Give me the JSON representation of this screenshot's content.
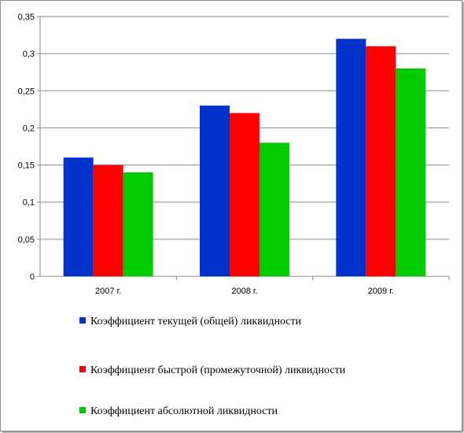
{
  "chart_data": {
    "type": "bar",
    "categories": [
      "2007 г.",
      "2008 г.",
      "2009 г."
    ],
    "series": [
      {
        "name": "Коэффициент текущей (общей) ликвидности",
        "values": [
          0.16,
          0.23,
          0.32
        ],
        "color": "#0033cc"
      },
      {
        "name": "Коэффициент быстрой (промежуточной) ликвидности",
        "values": [
          0.15,
          0.22,
          0.31
        ],
        "color": "#ff0000"
      },
      {
        "name": "Коэффициент абсолютной ликвидности",
        "values": [
          0.14,
          0.18,
          0.28
        ],
        "color": "#00cc00"
      }
    ],
    "yticks": [
      "0",
      "0,05",
      "0,1",
      "0,15",
      "0,2",
      "0,25",
      "0,3",
      "0,35"
    ],
    "ylim": [
      0,
      0.35
    ],
    "grid": true,
    "legend_position": "bottom"
  }
}
